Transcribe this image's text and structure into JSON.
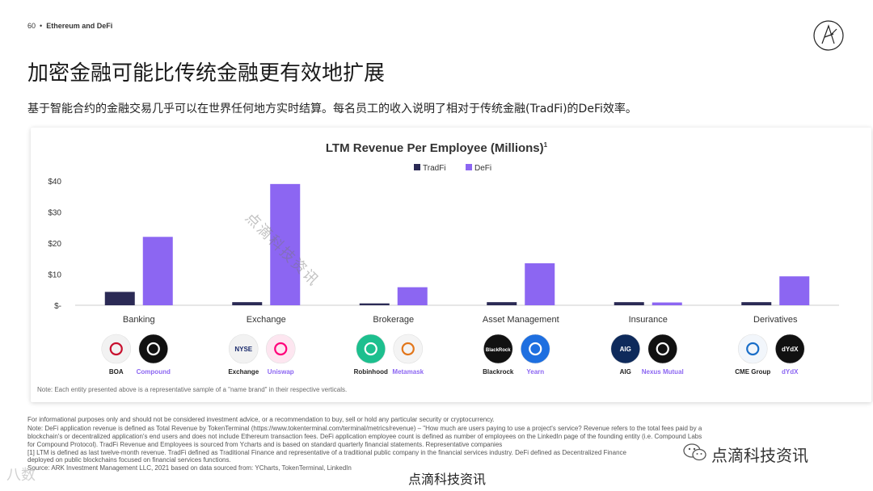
{
  "header": {
    "page_number": "60",
    "bullet": "•",
    "section": "Ethereum and DeFi"
  },
  "title": "加密金融可能比传统金融更有效地扩展",
  "subtitle": "基于智能合约的金融交易几乎可以在世界任何地方实时结算。每名员工的收入说明了相对于传统金融(TradFi)的DeFi效率。",
  "colors": {
    "tradfi": "#2b2a55",
    "defi": "#8c66f2",
    "axis_text": "#333333",
    "baseline": "#cccccc"
  },
  "chart_data": {
    "type": "bar",
    "title": "LTM Revenue Per Employee (Millions)",
    "title_footnote": "1",
    "categories": [
      "Banking",
      "Exchange",
      "Brokerage",
      "Asset Management",
      "Insurance",
      "Derivatives"
    ],
    "series": [
      {
        "name": "TradFi",
        "values": [
          4.3,
          1.0,
          0.6,
          1.0,
          1.0,
          1.0
        ]
      },
      {
        "name": "DeFi",
        "values": [
          22.0,
          39.0,
          5.8,
          13.5,
          0.9,
          9.3
        ]
      }
    ],
    "ylim": [
      0,
      40
    ],
    "yticks": [
      "$-",
      "$10",
      "$20",
      "$30",
      "$40"
    ],
    "legend_position": "top-center",
    "grid": false
  },
  "entities": [
    {
      "tradfi": "BOA",
      "defi": "Compound",
      "tradfi_icon": "boa-logo-icon",
      "defi_icon": "compound-logo-icon"
    },
    {
      "tradfi": "Exchange",
      "defi": "Uniswap",
      "tradfi_icon": "nyse-logo-icon",
      "defi_icon": "uniswap-logo-icon",
      "tradfi_icon_text": "NYSE"
    },
    {
      "tradfi": "Robinhood",
      "defi": "Metamask",
      "tradfi_icon": "robinhood-logo-icon",
      "defi_icon": "metamask-logo-icon"
    },
    {
      "tradfi": "Blackrock",
      "defi": "Yearn",
      "tradfi_icon": "blackrock-logo-icon",
      "defi_icon": "yearn-logo-icon",
      "tradfi_icon_text": "BlackRock"
    },
    {
      "tradfi": "AIG",
      "defi": "Nexus Mutual",
      "tradfi_icon": "aig-logo-icon",
      "defi_icon": "nexus-mutual-logo-icon",
      "tradfi_icon_text": "AIG"
    },
    {
      "tradfi": "CME Group",
      "defi": "dYdX",
      "tradfi_icon": "cme-logo-icon",
      "defi_icon": "dydx-logo-icon",
      "defi_icon_text": "dYdX"
    }
  ],
  "chart_note": "Note: Each entity presented above is a representative sample of a \"name brand\" in their respective verticals.",
  "footer": {
    "line1": "For informational purposes only and should not be considered investment advice, or a recommendation to buy, sell or hold any particular security or cryptocurrency.",
    "line2": "Note: DeFi application revenue is defined as Total Revenue by TokenTerminal (https://www.tokenterminal.com/terminal/metrics/revenue) – \"How much are users paying to use a project's service? Revenue refers to the total fees paid by a",
    "line3": "blockchain's or decentralized application's end users and does not include Ethereum transaction fees. DeFi application employee count is defined as number of employees on the LinkedIn page of the founding entity (i.e. Compound Labs",
    "line4": "for Compound Protocol). TradFi Revenue and Employees is sourced from Ycharts and is based on standard quarterly financial statements. Representative companies",
    "line5": "[1] LTM is defined as last twelve-month revenue. TradFi defined as Traditional Finance and representative of a traditional public company in the financial services industry. DeFi defined as Decentralized Finance",
    "line6": "deployed on public blockchains focused on financial services functions.",
    "line7": "Source: ARK Investment Management LLC, 2021 based on data sourced from: YCharts, TokenTerminal, LinkedIn"
  },
  "watermarks": {
    "diagonal": "点滴科技资讯",
    "left": "八数",
    "right": "点滴科技资讯",
    "bottom": "点滴科技资讯"
  }
}
